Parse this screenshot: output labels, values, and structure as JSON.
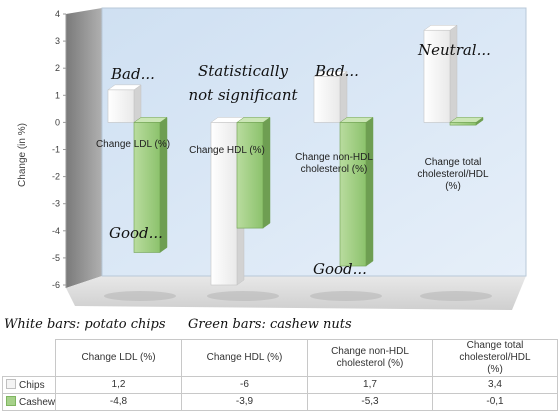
{
  "chart_data": {
    "type": "bar",
    "categories": [
      "Change LDL  (%)",
      "Change HDL  (%)",
      "Change non-HDL cholesterol (%)",
      "Change total cholesterol/HDL (%)"
    ],
    "category_label_lines": [
      [
        "Change LDL  (%)"
      ],
      [
        "Change HDL  (%)"
      ],
      [
        "Change non-HDL",
        "cholesterol (%)"
      ],
      [
        "Change total",
        "cholesterol/HDL",
        "(%)"
      ]
    ],
    "series": [
      {
        "name": "Chips",
        "values": [
          1.2,
          -6,
          1.7,
          3.4
        ],
        "color": "#f4f4f4"
      },
      {
        "name": "Cashew",
        "values": [
          -4.8,
          -3.9,
          -5.3,
          -0.1
        ],
        "color": "#a6d18a"
      }
    ],
    "table_values": [
      [
        "1,2",
        "-6",
        "1,7",
        "3,4"
      ],
      [
        "-4,8",
        "-3,9",
        "-5,3",
        "-0,1"
      ]
    ],
    "ylabel": "Change (in %)",
    "ylim": [
      -6,
      4
    ],
    "yticks": [
      4,
      3,
      2,
      1,
      0,
      -1,
      -2,
      -3,
      -4,
      -5,
      -6
    ],
    "grid": false,
    "background_color": "#dbe8f5",
    "style": "3d-clustered-bar"
  },
  "annotations": [
    {
      "lines": [
        "Bad..."
      ]
    },
    {
      "lines": [
        "Statistically",
        "not significant"
      ]
    },
    {
      "lines": [
        "Bad..."
      ]
    },
    {
      "lines": [
        "Neutral..."
      ]
    },
    {
      "lines": [
        "Good..."
      ]
    },
    {
      "lines": [
        "Good..."
      ]
    }
  ],
  "notes": {
    "white_bars": "White bars: potato chips",
    "green_bars": "Green bars: cashew nuts"
  }
}
